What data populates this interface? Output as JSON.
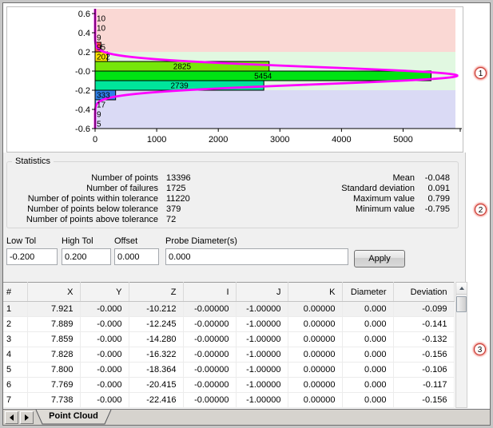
{
  "chart_data": {
    "type": "bar",
    "orientation": "horizontal-histogram",
    "title": "",
    "xlabel": "",
    "ylabel": "",
    "x_ticks": [
      0,
      1000,
      2000,
      3000,
      4000,
      5000
    ],
    "y_tick_labels": [
      "0.6",
      "0.4",
      "0.2",
      "-0.0",
      "-0.2",
      "-0.4",
      "-0.6"
    ],
    "xlim": [
      0,
      5850
    ],
    "ylim": [
      -0.6,
      0.6
    ],
    "bin_width": 0.1,
    "grid": false,
    "bins": [
      {
        "center": 0.55,
        "count": 10,
        "color": "#FF5050"
      },
      {
        "center": 0.45,
        "count": 10,
        "color": "#FF5050"
      },
      {
        "center": 0.35,
        "count": 9,
        "color": "#FF5050"
      },
      {
        "center": 0.25,
        "count": 95,
        "color": "#FF5050"
      },
      {
        "center": 0.15,
        "count": 202,
        "color": "#FFE600"
      },
      {
        "center": 0.05,
        "count": 2825,
        "color": "#76E60A"
      },
      {
        "center": -0.05,
        "count": 5454,
        "color": "#00E313"
      },
      {
        "center": -0.15,
        "count": 2739,
        "color": "#00E59B"
      },
      {
        "center": -0.25,
        "count": 333,
        "color": "#2F80E8"
      },
      {
        "center": -0.35,
        "count": 17,
        "color": "#2F80E8"
      },
      {
        "center": -0.45,
        "count": 9,
        "color": "#2F80E8"
      },
      {
        "center": -0.55,
        "count": 5,
        "color": "#2F80E8"
      }
    ],
    "tolerance_bands": [
      {
        "from": 0.2,
        "to": 0.65,
        "color": "#FAD8D4"
      },
      {
        "from": -0.2,
        "to": 0.2,
        "color": "#E1F8E1"
      },
      {
        "from": -0.65,
        "to": -0.2,
        "color": "#DADAF5"
      }
    ],
    "normal_curve": {
      "mean": -0.048,
      "sigma": 0.091,
      "amplitude": 5880,
      "color": "#FF00FF"
    }
  },
  "statistics": {
    "title": "Statistics",
    "left": [
      {
        "label": "Number of points",
        "value": "13396"
      },
      {
        "label": "Number of failures",
        "value": "1725"
      },
      {
        "label": "Number of points within tolerance",
        "value": "11220"
      },
      {
        "label": "Number of points below tolerance",
        "value": "379"
      },
      {
        "label": "Number of points above tolerance",
        "value": "72"
      }
    ],
    "right": [
      {
        "label": "Mean",
        "value": "-0.048"
      },
      {
        "label": "Standard deviation",
        "value": "0.091"
      },
      {
        "label": "Maximum value",
        "value": "0.799"
      },
      {
        "label": "Minimum value",
        "value": "-0.795"
      }
    ]
  },
  "tolerance_inputs": {
    "fields": [
      {
        "label": "Low Tol",
        "value": "-0.200"
      },
      {
        "label": "High Tol",
        "value": "0.200"
      },
      {
        "label": "Offset",
        "value": "0.000"
      },
      {
        "label": "Probe Diameter(s)",
        "value": "0.000"
      }
    ],
    "apply_label": "Apply"
  },
  "table": {
    "columns": [
      "#",
      "X",
      "Y",
      "Z",
      "I",
      "J",
      "K",
      "Diameter",
      "Deviation"
    ],
    "rows": [
      [
        "1",
        "7.921",
        "-0.000",
        "-10.212",
        "-0.00000",
        "-1.00000",
        "0.00000",
        "0.000",
        "-0.099"
      ],
      [
        "2",
        "7.889",
        "-0.000",
        "-12.245",
        "-0.00000",
        "-1.00000",
        "0.00000",
        "0.000",
        "-0.141"
      ],
      [
        "3",
        "7.859",
        "-0.000",
        "-14.280",
        "-0.00000",
        "-1.00000",
        "0.00000",
        "0.000",
        "-0.132"
      ],
      [
        "4",
        "7.828",
        "-0.000",
        "-16.322",
        "-0.00000",
        "-1.00000",
        "0.00000",
        "0.000",
        "-0.156"
      ],
      [
        "5",
        "7.800",
        "-0.000",
        "-18.364",
        "-0.00000",
        "-1.00000",
        "0.00000",
        "0.000",
        "-0.106"
      ],
      [
        "6",
        "7.769",
        "-0.000",
        "-20.415",
        "-0.00000",
        "-1.00000",
        "0.00000",
        "0.000",
        "-0.117"
      ],
      [
        "7",
        "7.738",
        "-0.000",
        "-22.416",
        "-0.00000",
        "-1.00000",
        "0.00000",
        "0.000",
        "-0.156"
      ]
    ],
    "selected_row_index": 0
  },
  "sheet_tabs": {
    "active_label": "Point Cloud",
    "prev_icon": "left-arrow-icon",
    "next_icon": "right-arrow-icon"
  },
  "scrollbar": {
    "up_icon": "up-arrow-icon"
  },
  "annotations": [
    {
      "label": "1"
    },
    {
      "label": "2"
    },
    {
      "label": "3"
    }
  ],
  "colors": {
    "annotation_ring": "#C2362F",
    "panel_background": "#F0F0F0",
    "curve_magenta": "#FF00FF"
  }
}
